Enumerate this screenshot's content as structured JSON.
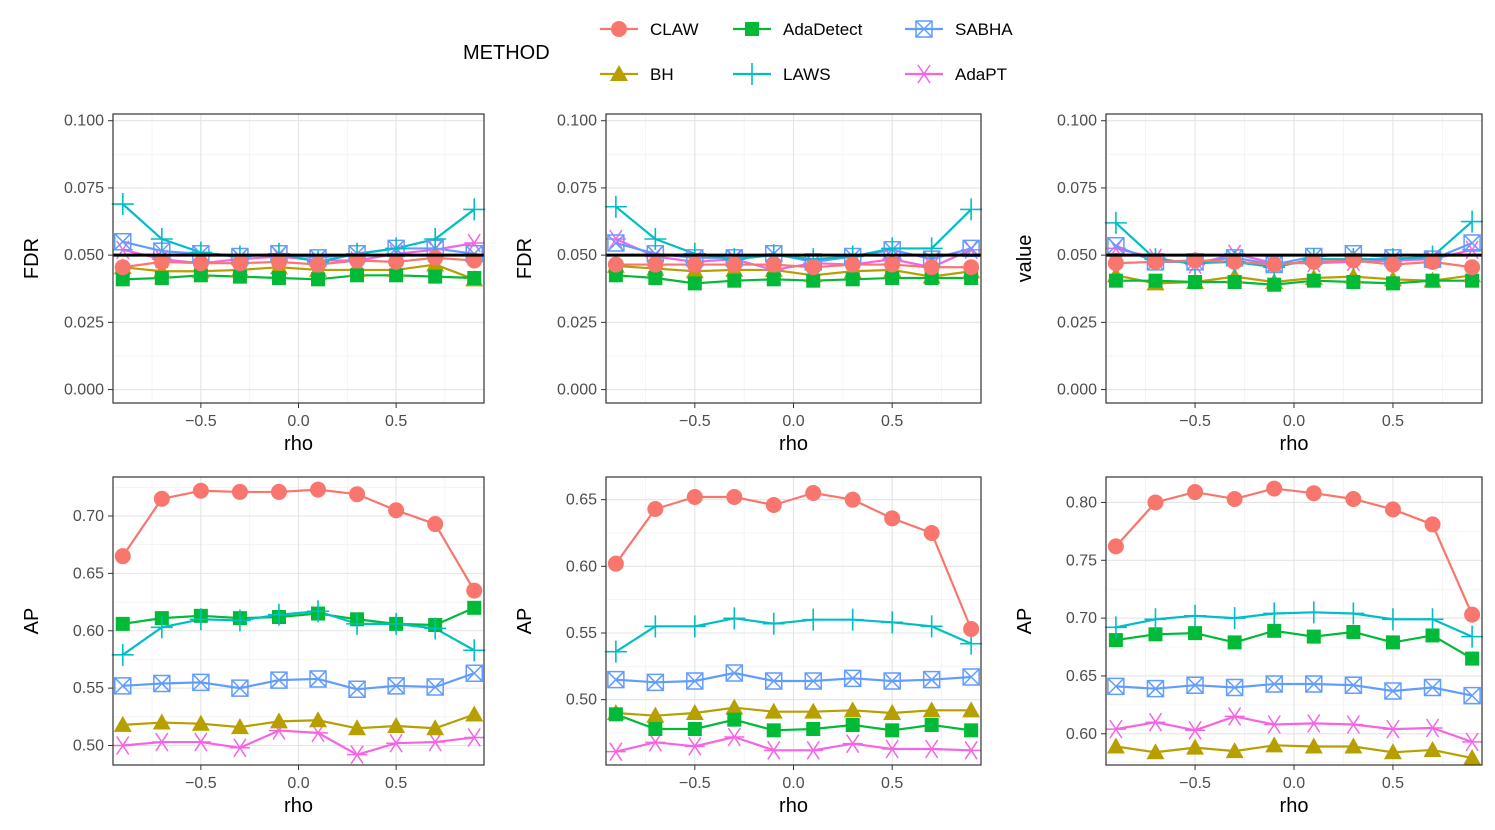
{
  "legend": {
    "title": "METHOD",
    "items": [
      {
        "label": "CLAW",
        "color": "#F8766D",
        "shape": "circle"
      },
      {
        "label": "AdaDetect",
        "color": "#00BA38",
        "shape": "square"
      },
      {
        "label": "SABHA",
        "color": "#619CFF",
        "shape": "boxx"
      },
      {
        "label": "BH",
        "color": "#B79F00",
        "shape": "triangle"
      },
      {
        "label": "LAWS",
        "color": "#00BFC4",
        "shape": "plus"
      },
      {
        "label": "AdaPT",
        "color": "#F564E3",
        "shape": "asterisk"
      }
    ]
  },
  "chart_data": [
    {
      "type": "line",
      "xlabel": "rho",
      "ylabel": "FDR",
      "xlim": [
        -0.95,
        0.95
      ],
      "ylim": [
        -0.005,
        0.1025
      ],
      "xticks": [
        -0.5,
        0.0,
        0.5
      ],
      "xtick_labels": [
        "−0.5",
        "0.0",
        "0.5"
      ],
      "yticks": [
        0,
        0.025,
        0.05,
        0.075,
        0.1
      ],
      "ytick_labels": [
        "0.000",
        "0.025",
        "0.050",
        "0.075",
        "0.100"
      ],
      "hline": 0.05,
      "x": [
        -0.9,
        -0.7,
        -0.5,
        -0.3,
        -0.1,
        0.1,
        0.3,
        0.5,
        0.7,
        0.9
      ],
      "series": [
        {
          "name": "CLAW",
          "values": [
            0.0455,
            0.0475,
            0.047,
            0.047,
            0.0475,
            0.0465,
            0.048,
            0.0475,
            0.049,
            0.048
          ]
        },
        {
          "name": "AdaDetect",
          "values": [
            0.041,
            0.0415,
            0.0425,
            0.042,
            0.0415,
            0.041,
            0.0425,
            0.0425,
            0.042,
            0.0415
          ]
        },
        {
          "name": "SABHA",
          "values": [
            0.055,
            0.0515,
            0.0505,
            0.0495,
            0.0505,
            0.049,
            0.0505,
            0.0525,
            0.0525,
            0.0505
          ]
        },
        {
          "name": "BH",
          "values": [
            0.0455,
            0.044,
            0.044,
            0.0445,
            0.0455,
            0.0445,
            0.0445,
            0.0445,
            0.0465,
            0.041
          ]
        },
        {
          "name": "LAWS",
          "values": [
            0.069,
            0.056,
            0.051,
            0.0495,
            0.0505,
            0.0475,
            0.0505,
            0.0525,
            0.056,
            0.067
          ]
        },
        {
          "name": "AdaPT",
          "values": [
            0.052,
            0.0485,
            0.047,
            0.0485,
            0.0495,
            0.048,
            0.048,
            0.0505,
            0.052,
            0.0545
          ]
        }
      ]
    },
    {
      "type": "line",
      "xlabel": "rho",
      "ylabel": "FDR",
      "xlim": [
        -0.95,
        0.95
      ],
      "ylim": [
        -0.005,
        0.1025
      ],
      "xticks": [
        -0.5,
        0.0,
        0.5
      ],
      "xtick_labels": [
        "−0.5",
        "0.0",
        "0.5"
      ],
      "yticks": [
        0,
        0.025,
        0.05,
        0.075,
        0.1
      ],
      "ytick_labels": [
        "0.000",
        "0.025",
        "0.050",
        "0.075",
        "0.100"
      ],
      "hline": 0.05,
      "x": [
        -0.9,
        -0.7,
        -0.5,
        -0.3,
        -0.1,
        0.1,
        0.3,
        0.5,
        0.7,
        0.9
      ],
      "series": [
        {
          "name": "CLAW",
          "values": [
            0.0465,
            0.0465,
            0.0465,
            0.0465,
            0.0465,
            0.0455,
            0.0465,
            0.0465,
            0.0455,
            0.0455
          ]
        },
        {
          "name": "AdaDetect",
          "values": [
            0.0425,
            0.0415,
            0.0395,
            0.0405,
            0.041,
            0.0405,
            0.041,
            0.0415,
            0.0415,
            0.0415
          ]
        },
        {
          "name": "SABHA",
          "values": [
            0.0545,
            0.0505,
            0.049,
            0.049,
            0.0505,
            0.0475,
            0.0495,
            0.052,
            0.0485,
            0.0525
          ]
        },
        {
          "name": "BH",
          "values": [
            0.046,
            0.045,
            0.044,
            0.0445,
            0.0445,
            0.0425,
            0.044,
            0.0445,
            0.042,
            0.044
          ]
        },
        {
          "name": "LAWS",
          "values": [
            0.068,
            0.056,
            0.0505,
            0.0485,
            0.05,
            0.0485,
            0.0495,
            0.0525,
            0.0525,
            0.067
          ]
        },
        {
          "name": "AdaPT",
          "values": [
            0.056,
            0.0495,
            0.0475,
            0.0485,
            0.0445,
            0.047,
            0.0465,
            0.0485,
            0.0455,
            0.052
          ]
        }
      ]
    },
    {
      "type": "line",
      "xlabel": "rho",
      "ylabel": "value",
      "xlim": [
        -0.95,
        0.95
      ],
      "ylim": [
        -0.005,
        0.1025
      ],
      "xticks": [
        -0.5,
        0.0,
        0.5
      ],
      "xtick_labels": [
        "−0.5",
        "0.0",
        "0.5"
      ],
      "yticks": [
        0,
        0.025,
        0.05,
        0.075,
        0.1
      ],
      "ytick_labels": [
        "0.000",
        "0.025",
        "0.050",
        "0.075",
        "0.100"
      ],
      "hline": 0.05,
      "x": [
        -0.9,
        -0.7,
        -0.5,
        -0.3,
        -0.1,
        0.1,
        0.3,
        0.5,
        0.7,
        0.9
      ],
      "series": [
        {
          "name": "CLAW",
          "values": [
            0.047,
            0.0475,
            0.048,
            0.0475,
            0.0465,
            0.0475,
            0.048,
            0.0465,
            0.0475,
            0.0455
          ]
        },
        {
          "name": "AdaDetect",
          "values": [
            0.0405,
            0.0405,
            0.04,
            0.04,
            0.039,
            0.0405,
            0.04,
            0.0395,
            0.0405,
            0.0405
          ]
        },
        {
          "name": "SABHA",
          "values": [
            0.0535,
            0.0475,
            0.0475,
            0.049,
            0.0465,
            0.0495,
            0.0505,
            0.049,
            0.0485,
            0.0545
          ]
        },
        {
          "name": "BH",
          "values": [
            0.0425,
            0.0395,
            0.04,
            0.042,
            0.04,
            0.0415,
            0.042,
            0.041,
            0.0405,
            0.0425
          ]
        },
        {
          "name": "LAWS",
          "values": [
            0.062,
            0.0485,
            0.047,
            0.0475,
            0.0455,
            0.0485,
            0.0485,
            0.0485,
            0.0495,
            0.0625
          ]
        },
        {
          "name": "AdaPT",
          "values": [
            0.0525,
            0.049,
            0.0465,
            0.0505,
            0.047,
            0.047,
            0.0475,
            0.048,
            0.0485,
            0.052
          ]
        }
      ]
    },
    {
      "type": "line",
      "xlabel": "rho",
      "ylabel": "AP",
      "xlim": [
        -0.95,
        0.95
      ],
      "ylim": [
        0.483,
        0.734
      ],
      "xticks": [
        -0.5,
        0.0,
        0.5
      ],
      "xtick_labels": [
        "−0.5",
        "0.0",
        "0.5"
      ],
      "yticks": [
        0.5,
        0.55,
        0.6,
        0.65,
        0.7
      ],
      "ytick_labels": [
        "0.50",
        "0.55",
        "0.60",
        "0.65",
        "0.70"
      ],
      "x": [
        -0.9,
        -0.7,
        -0.5,
        -0.3,
        -0.1,
        0.1,
        0.3,
        0.5,
        0.7,
        0.9
      ],
      "series": [
        {
          "name": "CLAW",
          "values": [
            0.665,
            0.715,
            0.722,
            0.721,
            0.721,
            0.723,
            0.719,
            0.705,
            0.693,
            0.635
          ]
        },
        {
          "name": "AdaDetect",
          "values": [
            0.606,
            0.611,
            0.613,
            0.611,
            0.612,
            0.615,
            0.61,
            0.606,
            0.605,
            0.62
          ]
        },
        {
          "name": "SABHA",
          "values": [
            0.552,
            0.554,
            0.555,
            0.55,
            0.557,
            0.558,
            0.549,
            0.552,
            0.551,
            0.563
          ]
        },
        {
          "name": "BH",
          "values": [
            0.518,
            0.52,
            0.519,
            0.516,
            0.521,
            0.522,
            0.515,
            0.517,
            0.515,
            0.527
          ]
        },
        {
          "name": "LAWS",
          "values": [
            0.579,
            0.603,
            0.61,
            0.609,
            0.614,
            0.617,
            0.606,
            0.606,
            0.602,
            0.583
          ]
        },
        {
          "name": "AdaPT",
          "values": [
            0.5,
            0.503,
            0.503,
            0.498,
            0.513,
            0.511,
            0.492,
            0.502,
            0.503,
            0.507
          ]
        }
      ]
    },
    {
      "type": "line",
      "xlabel": "rho",
      "ylabel": "AP",
      "xlim": [
        -0.95,
        0.95
      ],
      "ylim": [
        0.451,
        0.667
      ],
      "xticks": [
        -0.5,
        0.0,
        0.5
      ],
      "xtick_labels": [
        "−0.5",
        "0.0",
        "0.5"
      ],
      "yticks": [
        0.5,
        0.55,
        0.6,
        0.65
      ],
      "ytick_labels": [
        "0.50",
        "0.55",
        "0.60",
        "0.65"
      ],
      "x": [
        -0.9,
        -0.7,
        -0.5,
        -0.3,
        -0.1,
        0.1,
        0.3,
        0.5,
        0.7,
        0.9
      ],
      "series": [
        {
          "name": "CLAW",
          "values": [
            0.602,
            0.643,
            0.652,
            0.652,
            0.646,
            0.655,
            0.65,
            0.636,
            0.625,
            0.553
          ]
        },
        {
          "name": "AdaDetect",
          "values": [
            0.489,
            0.478,
            0.478,
            0.485,
            0.477,
            0.478,
            0.481,
            0.477,
            0.481,
            0.477
          ]
        },
        {
          "name": "SABHA",
          "values": [
            0.515,
            0.513,
            0.514,
            0.52,
            0.514,
            0.514,
            0.516,
            0.514,
            0.515,
            0.517
          ]
        },
        {
          "name": "BH",
          "values": [
            0.49,
            0.488,
            0.49,
            0.494,
            0.491,
            0.491,
            0.492,
            0.49,
            0.492,
            0.492
          ]
        },
        {
          "name": "LAWS",
          "values": [
            0.536,
            0.555,
            0.555,
            0.561,
            0.557,
            0.56,
            0.56,
            0.558,
            0.555,
            0.542
          ]
        },
        {
          "name": "AdaPT",
          "values": [
            0.461,
            0.468,
            0.465,
            0.472,
            0.462,
            0.462,
            0.467,
            0.463,
            0.463,
            0.462
          ]
        }
      ]
    },
    {
      "type": "line",
      "xlabel": "rho",
      "ylabel": "AP",
      "xlim": [
        -0.95,
        0.95
      ],
      "ylim": [
        0.573,
        0.822
      ],
      "xticks": [
        -0.5,
        0.0,
        0.5
      ],
      "xtick_labels": [
        "−0.5",
        "0.0",
        "0.5"
      ],
      "yticks": [
        0.6,
        0.65,
        0.7,
        0.75,
        0.8
      ],
      "ytick_labels": [
        "0.60",
        "0.65",
        "0.70",
        "0.75",
        "0.80"
      ],
      "x": [
        -0.9,
        -0.7,
        -0.5,
        -0.3,
        -0.1,
        0.1,
        0.3,
        0.5,
        0.7,
        0.9
      ],
      "series": [
        {
          "name": "CLAW",
          "values": [
            0.762,
            0.8,
            0.809,
            0.803,
            0.812,
            0.808,
            0.803,
            0.794,
            0.781,
            0.703
          ]
        },
        {
          "name": "AdaDetect",
          "values": [
            0.681,
            0.686,
            0.687,
            0.679,
            0.689,
            0.684,
            0.688,
            0.679,
            0.685,
            0.665
          ]
        },
        {
          "name": "SABHA",
          "values": [
            0.641,
            0.639,
            0.642,
            0.64,
            0.643,
            0.643,
            0.642,
            0.637,
            0.64,
            0.633
          ]
        },
        {
          "name": "BH",
          "values": [
            0.589,
            0.584,
            0.588,
            0.585,
            0.59,
            0.589,
            0.589,
            0.584,
            0.586,
            0.579
          ]
        },
        {
          "name": "LAWS",
          "values": [
            0.692,
            0.699,
            0.702,
            0.7,
            0.704,
            0.705,
            0.704,
            0.699,
            0.699,
            0.684
          ]
        },
        {
          "name": "AdaPT",
          "values": [
            0.604,
            0.61,
            0.603,
            0.615,
            0.608,
            0.609,
            0.608,
            0.604,
            0.605,
            0.593
          ]
        }
      ]
    }
  ]
}
